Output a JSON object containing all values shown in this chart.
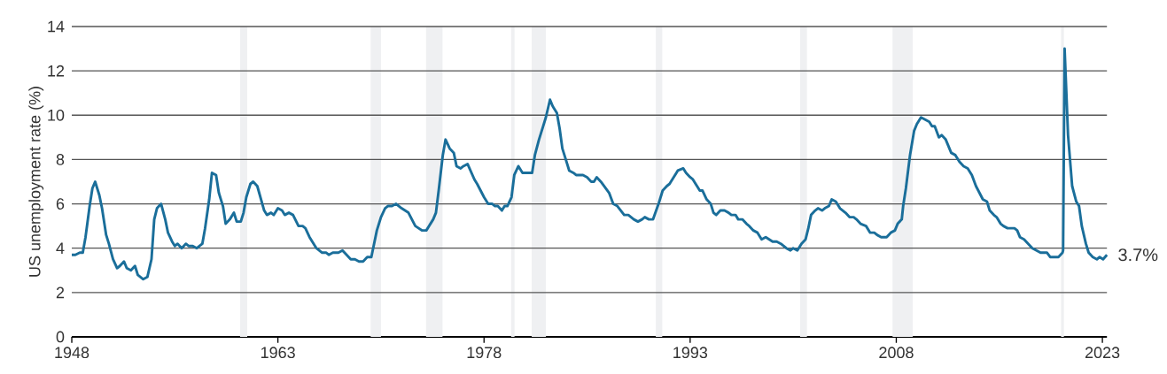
{
  "chart_data": {
    "type": "line",
    "ylabel": "US unemployment rate (%)",
    "x": [
      1948.0,
      1948.26,
      1948.58,
      1948.8,
      1949.0,
      1949.3,
      1949.5,
      1949.7,
      1950.0,
      1950.2,
      1950.5,
      1950.7,
      1951.0,
      1951.3,
      1951.5,
      1951.8,
      1952.0,
      1952.3,
      1952.6,
      1952.8,
      1953.2,
      1953.5,
      1953.8,
      1954.0,
      1954.2,
      1954.5,
      1954.8,
      1955.0,
      1955.3,
      1955.5,
      1955.7,
      1956.0,
      1956.3,
      1956.5,
      1956.8,
      1957.1,
      1957.5,
      1957.7,
      1958.0,
      1958.2,
      1958.5,
      1958.7,
      1959.0,
      1959.2,
      1959.5,
      1959.8,
      1960.0,
      1960.3,
      1960.5,
      1960.7,
      1961.0,
      1961.2,
      1961.5,
      1962.0,
      1962.2,
      1962.5,
      1962.7,
      1963.0,
      1963.3,
      1963.5,
      1963.8,
      1964.1,
      1964.5,
      1964.8,
      1965.0,
      1965.3,
      1965.8,
      1966.2,
      1966.5,
      1966.7,
      1967.0,
      1967.4,
      1967.7,
      1968.0,
      1968.3,
      1968.6,
      1968.9,
      1969.2,
      1969.5,
      1969.8,
      1970.2,
      1970.5,
      1970.8,
      1971.0,
      1971.3,
      1971.6,
      1972.0,
      1972.5,
      1973.0,
      1973.5,
      1973.8,
      1974.1,
      1974.3,
      1974.5,
      1974.7,
      1975.0,
      1975.2,
      1975.5,
      1975.8,
      1976.0,
      1976.3,
      1976.5,
      1976.8,
      1977.3,
      1977.5,
      1978.0,
      1978.3,
      1978.6,
      1978.8,
      1979.0,
      1979.3,
      1979.5,
      1979.7,
      1980.0,
      1980.2,
      1980.5,
      1980.8,
      1981.0,
      1981.5,
      1981.7,
      1982.0,
      1982.3,
      1982.5,
      1982.8,
      1983.0,
      1983.3,
      1983.5,
      1983.7,
      1984.0,
      1984.2,
      1984.5,
      1984.7,
      1985.2,
      1985.5,
      1985.8,
      1986.0,
      1986.2,
      1986.5,
      1987.1,
      1987.4,
      1987.7,
      1988.2,
      1988.5,
      1988.9,
      1989.2,
      1989.5,
      1989.7,
      1990.0,
      1990.3,
      1990.7,
      1991.0,
      1991.3,
      1991.5,
      1991.8,
      1992.1,
      1992.5,
      1992.7,
      1993.0,
      1993.2,
      1993.5,
      1993.7,
      1993.9,
      1994.2,
      1994.5,
      1994.7,
      1994.9,
      1995.2,
      1995.5,
      1995.8,
      1996.0,
      1996.3,
      1996.5,
      1996.8,
      1997.1,
      1997.3,
      1997.6,
      1997.9,
      1998.2,
      1998.5,
      1999.0,
      1999.3,
      1999.6,
      2000.0,
      2000.3,
      2000.5,
      2000.8,
      2001.1,
      2001.4,
      2001.6,
      2001.8,
      2002.1,
      2002.3,
      2002.6,
      2002.8,
      2003.1,
      2003.3,
      2003.6,
      2003.9,
      2004.1,
      2004.3,
      2004.6,
      2004.9,
      2005.1,
      2005.4,
      2005.8,
      2006.1,
      2006.4,
      2006.6,
      2006.9,
      2007.3,
      2007.6,
      2007.9,
      2008.1,
      2008.4,
      2008.5,
      2008.7,
      2009.0,
      2009.3,
      2009.5,
      2009.8,
      2010.1,
      2010.4,
      2010.6,
      2010.8,
      2011.1,
      2011.3,
      2011.6,
      2012.0,
      2012.3,
      2012.6,
      2012.9,
      2013.2,
      2013.5,
      2013.8,
      2014.3,
      2014.6,
      2014.8,
      2015.1,
      2015.3,
      2015.6,
      2015.8,
      2016.1,
      2016.6,
      2016.8,
      2017.0,
      2017.3,
      2017.6,
      2017.9,
      2018.2,
      2018.5,
      2018.96,
      2019.2,
      2019.8,
      2020.1,
      2020.14,
      2020.25,
      2020.5,
      2020.8,
      2021.1,
      2021.3,
      2021.5,
      2021.8,
      2022.0,
      2022.3,
      2022.6,
      2022.8,
      2023.05,
      2023.33
    ],
    "series": [
      {
        "color": "#1a6e9a",
        "values": [
          3.7,
          3.7,
          3.8,
          3.8,
          4.5,
          5.9,
          6.7,
          7.0,
          6.4,
          5.8,
          4.6,
          4.2,
          3.5,
          3.1,
          3.2,
          3.4,
          3.1,
          3.0,
          3.2,
          2.8,
          2.6,
          2.7,
          3.5,
          5.3,
          5.8,
          6.0,
          5.3,
          4.7,
          4.3,
          4.1,
          4.2,
          4.0,
          4.2,
          4.1,
          4.1,
          4.0,
          4.2,
          4.9,
          6.2,
          7.4,
          7.3,
          6.5,
          5.9,
          5.1,
          5.3,
          5.6,
          5.2,
          5.2,
          5.6,
          6.3,
          6.9,
          7.0,
          6.8,
          5.7,
          5.5,
          5.6,
          5.5,
          5.8,
          5.7,
          5.5,
          5.6,
          5.5,
          5.0,
          5.0,
          4.9,
          4.5,
          4.0,
          3.8,
          3.8,
          3.7,
          3.8,
          3.8,
          3.9,
          3.7,
          3.5,
          3.5,
          3.4,
          3.4,
          3.6,
          3.6,
          4.8,
          5.4,
          5.8,
          5.9,
          5.9,
          6.0,
          5.8,
          5.6,
          5.0,
          4.8,
          4.8,
          5.1,
          5.3,
          5.6,
          6.6,
          8.2,
          8.9,
          8.5,
          8.3,
          7.7,
          7.6,
          7.7,
          7.8,
          7.1,
          6.9,
          6.3,
          6.0,
          6.0,
          5.9,
          5.9,
          5.7,
          5.9,
          5.9,
          6.3,
          7.3,
          7.7,
          7.4,
          7.4,
          7.4,
          8.2,
          8.9,
          9.5,
          9.9,
          10.7,
          10.4,
          10.1,
          9.4,
          8.5,
          7.9,
          7.5,
          7.4,
          7.3,
          7.3,
          7.2,
          7.0,
          7.0,
          7.2,
          7.0,
          6.5,
          6.0,
          5.9,
          5.5,
          5.5,
          5.3,
          5.2,
          5.3,
          5.4,
          5.3,
          5.3,
          6.0,
          6.6,
          6.8,
          6.9,
          7.2,
          7.5,
          7.6,
          7.4,
          7.2,
          7.1,
          6.8,
          6.6,
          6.6,
          6.2,
          6.0,
          5.6,
          5.5,
          5.7,
          5.7,
          5.6,
          5.5,
          5.5,
          5.3,
          5.3,
          5.1,
          5.0,
          4.8,
          4.7,
          4.4,
          4.5,
          4.3,
          4.3,
          4.2,
          4.0,
          3.9,
          4.0,
          3.9,
          4.2,
          4.4,
          4.9,
          5.5,
          5.7,
          5.8,
          5.7,
          5.8,
          5.9,
          6.2,
          6.1,
          5.8,
          5.7,
          5.6,
          5.4,
          5.4,
          5.3,
          5.1,
          5.0,
          4.7,
          4.7,
          4.6,
          4.5,
          4.5,
          4.7,
          4.8,
          5.1,
          5.3,
          5.9,
          6.7,
          8.2,
          9.3,
          9.6,
          9.9,
          9.8,
          9.7,
          9.5,
          9.5,
          9.0,
          9.1,
          8.9,
          8.3,
          8.2,
          7.9,
          7.7,
          7.6,
          7.3,
          6.8,
          6.2,
          6.1,
          5.7,
          5.5,
          5.4,
          5.1,
          5.0,
          4.9,
          4.9,
          4.8,
          4.5,
          4.4,
          4.2,
          4.0,
          3.9,
          3.8,
          3.8,
          3.6,
          3.6,
          3.8,
          3.9,
          13.0,
          9.1,
          6.8,
          6.1,
          5.9,
          5.0,
          4.2,
          3.8,
          3.6,
          3.5,
          3.6,
          3.5,
          3.7
        ]
      }
    ],
    "xlim": [
      1948,
      2023.33
    ],
    "ylim": [
      0,
      14
    ],
    "xticks": [
      1948,
      1963,
      1978,
      1993,
      2008,
      2023
    ],
    "yticks": [
      0,
      2,
      4,
      6,
      8,
      10,
      12,
      14
    ],
    "grid": "y",
    "bands": [
      {
        "axis": "x",
        "from": 1960.25,
        "to": 1960.77,
        "color": "#eff0f2"
      },
      {
        "axis": "x",
        "from": 1969.75,
        "to": 1970.5,
        "color": "#eff0f2"
      },
      {
        "axis": "x",
        "from": 1973.78,
        "to": 1974.98,
        "color": "#eff0f2"
      },
      {
        "axis": "x",
        "from": 1979.97,
        "to": 1980.22,
        "color": "#eff0f2"
      },
      {
        "axis": "x",
        "from": 1981.47,
        "to": 1982.5,
        "color": "#eff0f2"
      },
      {
        "axis": "x",
        "from": 1990.5,
        "to": 1990.97,
        "color": "#eff0f2"
      },
      {
        "axis": "x",
        "from": 2001.0,
        "to": 2001.5,
        "color": "#eff0f2"
      },
      {
        "axis": "x",
        "from": 2007.73,
        "to": 2009.2,
        "color": "#eff0f2"
      },
      {
        "axis": "x",
        "from": 2019.99,
        "to": 2020.2,
        "color": "#eff0f2"
      }
    ],
    "annotations": [
      {
        "text": "3.7%",
        "x": 2023.33,
        "y": 3.7
      }
    ]
  }
}
